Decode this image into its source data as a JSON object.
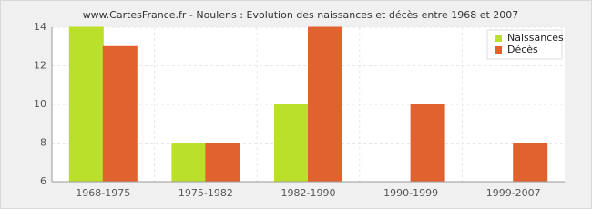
{
  "chart_data": {
    "type": "bar",
    "title": "www.CartesFrance.fr - Noulens : Evolution des naissances et décès entre 1968 et 2007",
    "categories": [
      "1968-1975",
      "1975-1982",
      "1982-1990",
      "1990-1999",
      "1999-2007"
    ],
    "series": [
      {
        "name": "Naissances",
        "color": "#bbe02b",
        "values": [
          14,
          8,
          10,
          6,
          6
        ]
      },
      {
        "name": "Décès",
        "color": "#e0622f",
        "values": [
          13,
          8,
          14,
          10,
          8
        ]
      }
    ],
    "ylim": [
      6,
      14
    ],
    "yticks": [
      6,
      8,
      10,
      12,
      14
    ],
    "grid": true,
    "legend": "top-right"
  }
}
